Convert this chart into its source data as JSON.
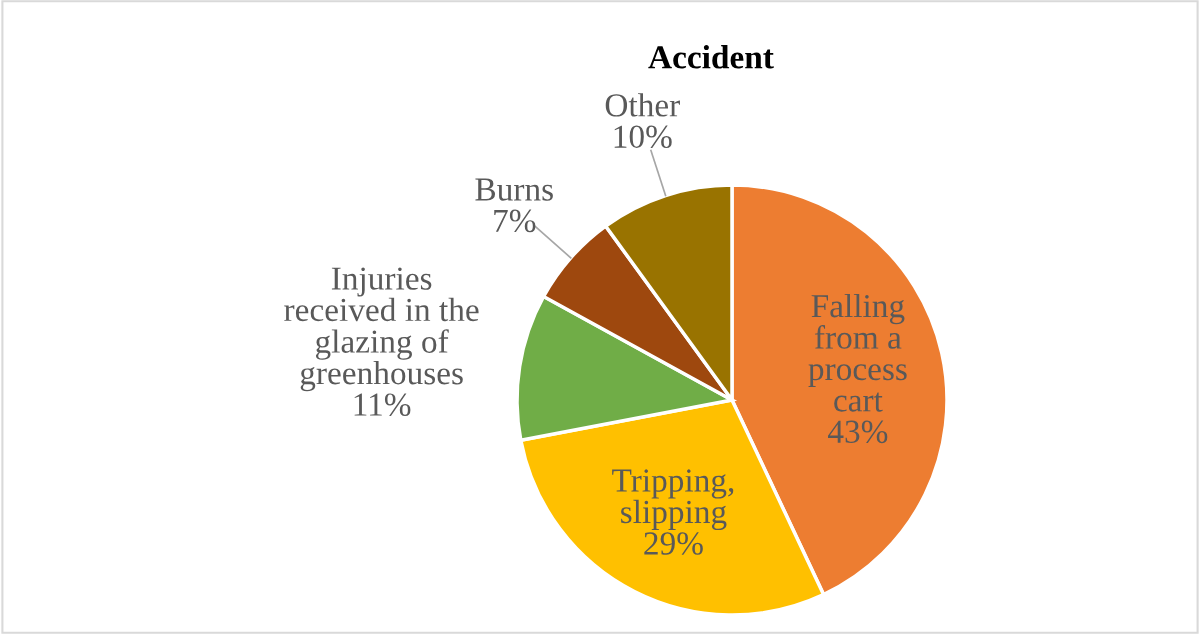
{
  "chart_data": {
    "type": "pie",
    "title": "Accident",
    "categories": [
      "Falling from a process cart",
      "Tripping, slipping",
      "Injuries received in the glazing of greenhouses",
      "Burns",
      "Other"
    ],
    "values": [
      43,
      29,
      11,
      7,
      10
    ],
    "colors": [
      "#ed7d31",
      "#ffc000",
      "#70ad47",
      "#9e480e",
      "#997300"
    ],
    "value_labels": [
      "43%",
      "29%",
      "11%",
      "7%",
      "10%"
    ],
    "legend": false
  }
}
